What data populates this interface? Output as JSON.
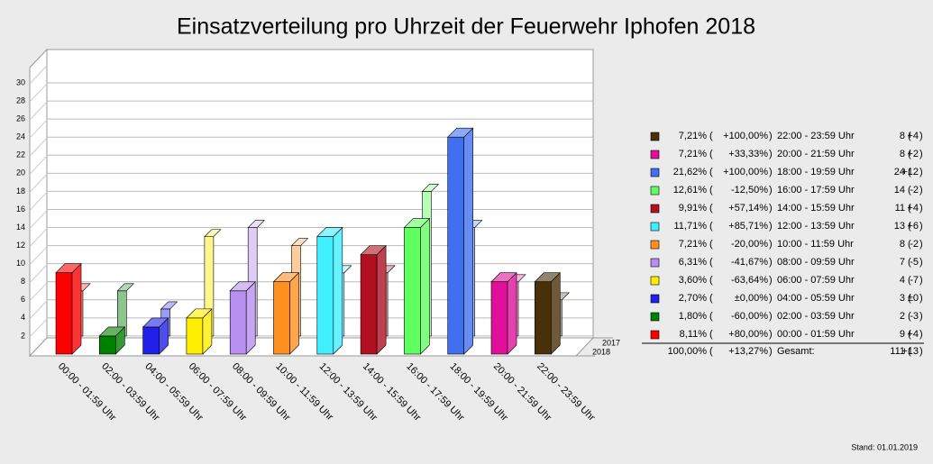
{
  "chart_data": {
    "type": "bar3d",
    "title": "Einsatzverteilung pro Uhrzeit der Feuerwehr Iphofen 2018",
    "categories": [
      "00:00 - 01:59 Uhr",
      "02:00 - 03:59 Uhr",
      "04:00 - 05:59 Uhr",
      "06:00 - 07:59 Uhr",
      "08:00 - 09:59 Uhr",
      "10:00 - 11:59 Uhr",
      "12:00 - 13:59 Uhr",
      "14:00 - 15:59 Uhr",
      "16:00 - 17:59 Uhr",
      "18:00 - 19:59 Uhr",
      "20:00 - 21:59 Uhr",
      "22:00 - 23:59 Uhr"
    ],
    "colors": [
      "#ff0000",
      "#008000",
      "#2020e8",
      "#ffee00",
      "#b890f0",
      "#ff9020",
      "#40f0ff",
      "#b01020",
      "#60ff60",
      "#4070f0",
      "#e0109a",
      "#4a3008"
    ],
    "series": [
      {
        "name": "2017",
        "values": [
          5,
          5,
          3,
          11,
          12,
          10,
          7,
          7,
          16,
          12,
          6,
          4
        ]
      },
      {
        "name": "2018",
        "values": [
          9,
          2,
          3,
          4,
          7,
          8,
          13,
          11,
          14,
          24,
          8,
          8
        ]
      }
    ],
    "ylim": [
      0,
      30
    ],
    "yticks": [
      2,
      4,
      6,
      8,
      10,
      12,
      14,
      16,
      18,
      20,
      22,
      24,
      26,
      28,
      30
    ],
    "grid": true,
    "table_rows": [
      {
        "share": "8,11%",
        "change": "+80,00%",
        "diff": "+4"
      },
      {
        "share": "1,80%",
        "change": "-60,00%",
        "diff": "-3"
      },
      {
        "share": "2,70%",
        "change": "±0,00%",
        "diff": "±0"
      },
      {
        "share": "3,60%",
        "change": "-63,64%",
        "diff": "-7"
      },
      {
        "share": "6,31%",
        "change": "-41,67%",
        "diff": "-5"
      },
      {
        "share": "7,21%",
        "change": "-20,00%",
        "diff": "-2"
      },
      {
        "share": "11,71%",
        "change": "+85,71%",
        "diff": "+6"
      },
      {
        "share": "9,91%",
        "change": "+57,14%",
        "diff": "+4"
      },
      {
        "share": "12,61%",
        "change": "-12,50%",
        "diff": "-2"
      },
      {
        "share": "21,62%",
        "change": "+100,00%",
        "diff": "+12"
      },
      {
        "share": "7,21%",
        "change": "+33,33%",
        "diff": "+2"
      },
      {
        "share": "7,21%",
        "change": "+100,00%",
        "diff": "+4"
      }
    ],
    "total": {
      "share": "100,00%",
      "change": "+13,27%",
      "label": "Gesamt:",
      "count": 111,
      "diff": "+13"
    },
    "footer": "Stand: 01.01.2019"
  }
}
